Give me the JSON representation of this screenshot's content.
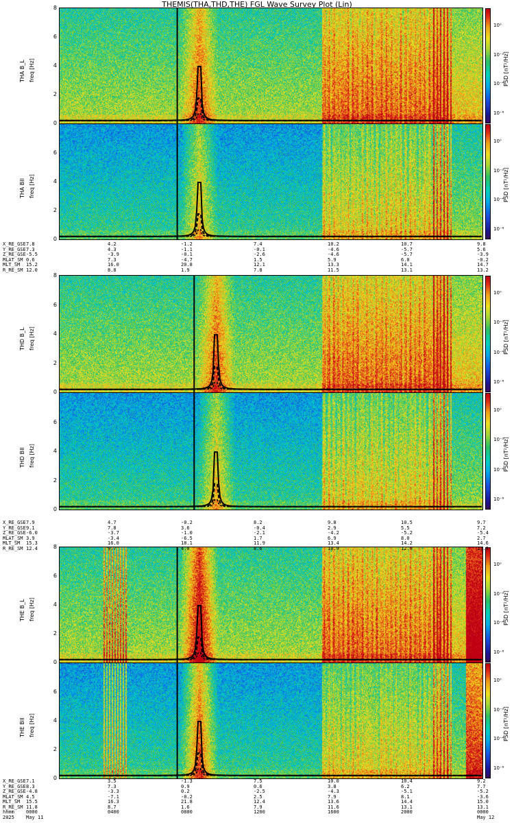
{
  "title": "THEMIS(THA,THD,THE) FGL Wave Survey Plot (Lin)",
  "colors": {
    "background_low": "#2f6cc8",
    "line": "#000000"
  },
  "chart_data": [
    {
      "type": "heatmap",
      "probe": "tha",
      "component": "B_L",
      "ylabel": "THA B_L",
      "yunits": "freq [Hz]",
      "ylim": [
        0,
        8
      ],
      "yticks": [
        "8",
        "6",
        "4",
        "2",
        "0"
      ],
      "zlabel": "PSD [nT²/Hz]",
      "zscale": "log",
      "zticks": [
        "10⁰",
        "10⁻²",
        "10⁻⁴",
        "10⁻⁶"
      ],
      "activity": "quiet"
    },
    {
      "type": "heatmap",
      "probe": "tha",
      "component": "B_II",
      "ylabel": "THA BII",
      "yunits": "freq [Hz]",
      "ylim": [
        0,
        8
      ],
      "yticks": [
        "6",
        "4",
        "2",
        "0"
      ],
      "zlabel": "PSD [nT²/Hz]",
      "zscale": "log",
      "zticks": [
        "10⁰",
        "10⁻²",
        "10⁻⁴",
        "10⁻⁶"
      ],
      "activity": "quiet"
    },
    {
      "type": "heatmap",
      "probe": "thd",
      "component": "B_L",
      "ylabel": "THD B_L",
      "yunits": "freq [Hz]",
      "ylim": [
        0,
        8
      ],
      "yticks": [
        "8",
        "6",
        "4",
        "2",
        "0"
      ],
      "zlabel": "PSD [nT²/Hz]",
      "zscale": "log",
      "zticks": [
        "10⁰",
        "10⁻²",
        "10⁻⁴",
        "10⁻⁶"
      ],
      "activity": "quiet"
    },
    {
      "type": "heatmap",
      "probe": "thd",
      "component": "B_II",
      "ylabel": "THD BII",
      "yunits": "freq [Hz]",
      "ylim": [
        0,
        8
      ],
      "yticks": [
        "6",
        "4",
        "2",
        "0"
      ],
      "zlabel": "PSD [nT²/Hz]",
      "zscale": "log",
      "zticks": [
        "10⁰",
        "10⁻²",
        "10⁻⁴",
        "10⁻⁶"
      ],
      "activity": "quiet"
    },
    {
      "type": "heatmap",
      "probe": "the",
      "component": "B_L",
      "ylabel": "THE B_L",
      "yunits": "freq [Hz]",
      "ylim": [
        0,
        8
      ],
      "yticks": [
        "8",
        "6",
        "4",
        "2",
        "0"
      ],
      "zlabel": "PSD [nT²/Hz]",
      "zscale": "log",
      "zticks": [
        "10⁰",
        "10⁻²",
        "10⁻⁴",
        "10⁻⁶"
      ],
      "activity": "active"
    },
    {
      "type": "heatmap",
      "probe": "the",
      "component": "B_II",
      "ylabel": "THE BII",
      "yunits": "freq [Hz]",
      "ylim": [
        0,
        8
      ],
      "yticks": [
        "6",
        "4",
        "2",
        "0"
      ],
      "zlabel": "PSD [nT²/Hz]",
      "zscale": "log",
      "zticks": [
        "10⁰",
        "10⁻²",
        "10⁻⁴",
        "10⁻⁶"
      ],
      "activity": "active"
    }
  ],
  "orbit_tables": [
    {
      "rows": [
        {
          "label": "X_RE_GSE",
          "values": [
            "7.8",
            "4.2",
            "-1.2",
            "7.4",
            "10.2",
            "10.7",
            "9.8"
          ]
        },
        {
          "label": "Y_RE_GSE",
          "values": [
            "7.3",
            "4.3",
            "-1.1",
            "-0.1",
            "-4.6",
            "-5.7",
            "5.6"
          ]
        },
        {
          "label": "Z_RE_GSE",
          "values": [
            "-5.5",
            "-3.9",
            "-0.1",
            "-2.6",
            "-4.6",
            "-5.7",
            "-3.9"
          ]
        },
        {
          "label": "MLAT_SM",
          "values": [
            "0.6",
            "7.3",
            "-4.7",
            "1.5",
            "5.9",
            "6.0",
            "-0.2"
          ]
        },
        {
          "label": "MLT_SM",
          "values": [
            "15.2",
            "16.0",
            "20.8",
            "12.1",
            "13.3",
            "14.1",
            "14.7"
          ]
        },
        {
          "label": "R_RE_SM",
          "values": [
            "12.0",
            "8.8",
            "1.9",
            "7.8",
            "11.5",
            "13.1",
            "13.2"
          ]
        }
      ]
    },
    {
      "rows": [
        {
          "label": "X_RE_GSE",
          "values": [
            "7.9",
            "4.7",
            "-0.2",
            "8.2",
            "9.8",
            "10.5",
            "9.7"
          ]
        },
        {
          "label": "Y_RE_GSE",
          "values": [
            "9.1",
            "7.8",
            "3.6",
            "-0.4",
            "2.9",
            "5.5",
            "7.2"
          ]
        },
        {
          "label": "Z_RE_GSE",
          "values": [
            "-6.0",
            "-3.7",
            "-1.0",
            "-2.1",
            "-4.2",
            "-5.2",
            "-5.4"
          ]
        },
        {
          "label": "MLAT_SM",
          "values": [
            "3.9",
            "-3.4",
            "-6.5",
            "1.7",
            "6.9",
            "8.0",
            "2.7"
          ]
        },
        {
          "label": "MLT_SM",
          "values": [
            "15.3",
            "16.0",
            "18.1",
            "11.9",
            "13.4",
            "14.2",
            "14.6"
          ]
        },
        {
          "label": "R_RE_SM",
          "values": [
            "12.4",
            "9.7",
            "4.0",
            "8.6",
            "10.9",
            "12.9",
            "13.3"
          ]
        }
      ]
    },
    {
      "rows": [
        {
          "label": "X_RE_GSE",
          "values": [
            "7.1",
            "3.5",
            "-1.3",
            "7.5",
            "10.0",
            "10.4",
            "9.2"
          ]
        },
        {
          "label": "Y_RE_GSE",
          "values": [
            "8.3",
            "7.3",
            "0.9",
            "0.6",
            "3.8",
            "6.2",
            "7.7"
          ]
        },
        {
          "label": "Z_RE_GSE",
          "values": [
            "-4.8",
            "-3.3",
            "0.2",
            "-2.5",
            "-4.3",
            "-5.1",
            "-5.2"
          ]
        },
        {
          "label": "MLAT_SM",
          "values": [
            "4.5",
            "-7.1",
            "-0.2",
            "2.5",
            "7.9",
            "8.1",
            "-3.6"
          ]
        },
        {
          "label": "MLT_SM",
          "values": [
            "15.5",
            "16.3",
            "21.8",
            "12.4",
            "13.6",
            "14.4",
            "15.0"
          ]
        },
        {
          "label": "R_RE_SM",
          "values": [
            "11.8",
            "8.7",
            "1.6",
            "7.9",
            "11.6",
            "13.1",
            "13.1"
          ]
        },
        {
          "label": "hhmm",
          "values": [
            "0000",
            "0400",
            "0800",
            "1200",
            "1600",
            "2000",
            "0000"
          ]
        },
        {
          "label": "2025",
          "values": [
            "May 11",
            "",
            "",
            "",
            "",
            "",
            "May 12"
          ]
        }
      ]
    }
  ]
}
